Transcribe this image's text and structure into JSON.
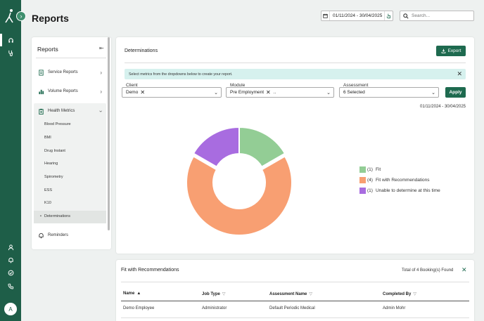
{
  "header": {
    "title": "Reports",
    "date_range": "01/11/2024 - 30/04/2025",
    "search_placeholder": "Search..."
  },
  "sidebar": {
    "title": "Reports",
    "items": [
      {
        "label": "Service Reports"
      },
      {
        "label": "Volume Reports"
      },
      {
        "label": "Health Metrics"
      }
    ],
    "sub_items": [
      "Blood Pressure",
      "BMI",
      "Drug Instant",
      "Hearing",
      "Spirometry",
      "ESS",
      "K10",
      "Determinations"
    ],
    "reminders": "Reminders"
  },
  "main": {
    "title": "Determinations",
    "export_label": "Export",
    "info_text": "Select metrics from the dropdowns below to create your report.",
    "filters": {
      "client_label": "Client",
      "client_value": "Demo",
      "module_label": "Module",
      "module_value": "Pre Employment",
      "module_more": "..",
      "assessment_label": "Assessment",
      "assessment_value": "6 Selected"
    },
    "apply_label": "Apply",
    "range_text": "01/11/2024 - 30/04/2025"
  },
  "chart_data": {
    "type": "pie",
    "style": "donut",
    "title": "",
    "categories": [
      "Fit",
      "Fit with Recommendations",
      "Unable to determine at this time"
    ],
    "values": [
      1,
      4,
      1
    ],
    "legend_counts": [
      "(1)",
      "(4)",
      "(1)"
    ],
    "colors": [
      "#93cd95",
      "#f89f72",
      "#a86ce0"
    ],
    "highlighted": "Fit with Recommendations",
    "legend_position": "right"
  },
  "table": {
    "title": "Fit with Recommendations",
    "count_text": "Total of 4 Booking(s) Found",
    "columns": [
      "Name",
      "Job Type",
      "Assessment Name",
      "Completed By"
    ],
    "rows": [
      [
        "Demo Employee",
        "Administrator",
        "Default Periodic Medical",
        "Admin Mohr"
      ]
    ]
  },
  "user": {
    "avatar_initial": "A"
  }
}
